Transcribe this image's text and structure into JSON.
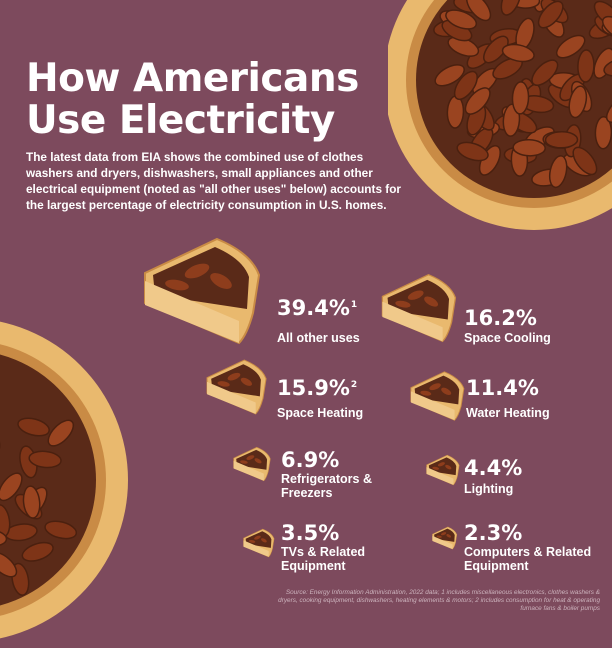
{
  "title_line1": "How Americans",
  "title_line2": "Use Electricity",
  "subtitle": "The latest data from EIA shows the combined use of clothes washers and dryers, dishwashers, small appliances and other electrical equipment (noted as \"all other uses\" below) accounts for the largest percentage of electricity consumption in U.S. homes.",
  "source": "Source: Energy Information Administration, 2022 data; 1 includes miscellaneous electronics, clothes washers & dryers, cooking equipment, dishwashers, heating elements & motors; 2 includes consumption for heat & operating furnace fans & boiler pumps",
  "colors": {
    "background": "#7d4a5d",
    "crust": "#e9b96e",
    "filling": "#5a2a18",
    "pecan": "#8e3d1c"
  },
  "chart_data": {
    "type": "pie",
    "title": "How Americans Use Electricity",
    "unit": "%",
    "items": [
      {
        "label": "All other uses",
        "value": 39.4,
        "display": "39.4%",
        "note": "1"
      },
      {
        "label": "Space Cooling",
        "value": 16.2,
        "display": "16.2%",
        "note": ""
      },
      {
        "label": "Space Heating",
        "value": 15.9,
        "display": "15.9%",
        "note": "2"
      },
      {
        "label": "Water Heating",
        "value": 11.4,
        "display": "11.4%",
        "note": ""
      },
      {
        "label": "Refrigerators & Freezers",
        "value": 6.9,
        "display": "6.9%",
        "note": ""
      },
      {
        "label": "Lighting",
        "value": 4.4,
        "display": "4.4%",
        "note": ""
      },
      {
        "label": "TVs & Related Equipment",
        "value": 3.5,
        "display": "3.5%",
        "note": ""
      },
      {
        "label": "Computers & Related Equipment",
        "value": 2.3,
        "display": "2.3%",
        "note": ""
      }
    ]
  }
}
